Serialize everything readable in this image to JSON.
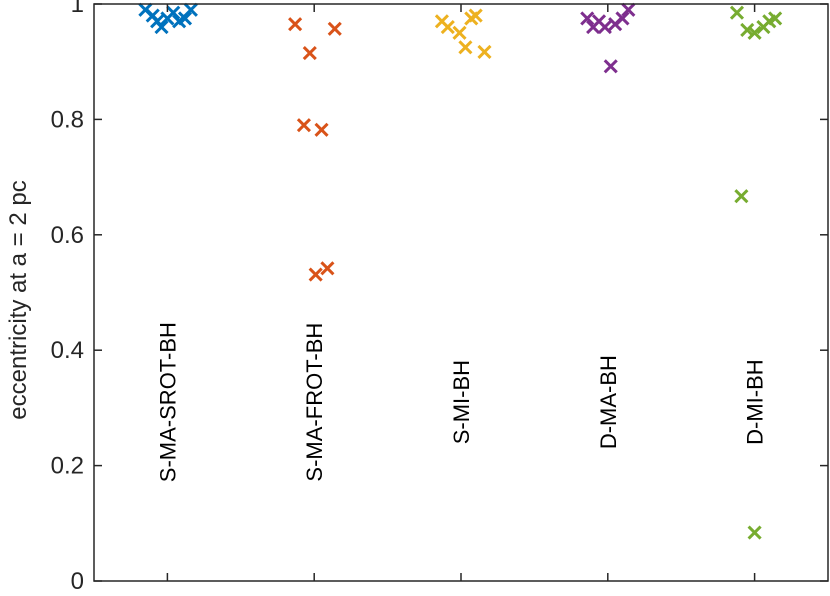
{
  "chart_data": {
    "type": "scatter",
    "title": "",
    "xlabel": "",
    "ylabel": "eccentricity at a = 2 pc",
    "ylim": [
      0,
      1
    ],
    "yticks": [
      {
        "value": 0,
        "label": "0"
      },
      {
        "value": 0.2,
        "label": "0.2"
      },
      {
        "value": 0.4,
        "label": "0.4"
      },
      {
        "value": 0.6,
        "label": "0.6"
      },
      {
        "value": 0.8,
        "label": "0.8"
      },
      {
        "value": 1,
        "label": "1"
      }
    ],
    "xlim": [
      0.5,
      5.5
    ],
    "grid": false,
    "marker": "x",
    "label_value": 0.31,
    "series": [
      {
        "name": "S-MA-SROT-BH",
        "color": "#0072BD",
        "center": 1,
        "points": [
          {
            "x": 0.85,
            "y": 0.99
          },
          {
            "x": 0.9,
            "y": 0.98
          },
          {
            "x": 0.93,
            "y": 0.97
          },
          {
            "x": 0.96,
            "y": 0.96
          },
          {
            "x": 1.0,
            "y": 0.975
          },
          {
            "x": 1.04,
            "y": 0.985
          },
          {
            "x": 1.08,
            "y": 0.97
          },
          {
            "x": 1.12,
            "y": 0.975
          },
          {
            "x": 1.16,
            "y": 0.99
          }
        ]
      },
      {
        "name": "S-MA-FROT-BH",
        "color": "#D95319",
        "center": 2,
        "points": [
          {
            "x": 1.87,
            "y": 0.965
          },
          {
            "x": 2.14,
            "y": 0.957
          },
          {
            "x": 1.97,
            "y": 0.915
          },
          {
            "x": 1.93,
            "y": 0.79
          },
          {
            "x": 2.05,
            "y": 0.782
          },
          {
            "x": 2.01,
            "y": 0.531
          },
          {
            "x": 2.09,
            "y": 0.542
          }
        ]
      },
      {
        "name": "S-MI-BH",
        "color": "#EDB120",
        "center": 3,
        "points": [
          {
            "x": 2.87,
            "y": 0.97
          },
          {
            "x": 2.91,
            "y": 0.96
          },
          {
            "x": 2.99,
            "y": 0.95
          },
          {
            "x": 3.03,
            "y": 0.925
          },
          {
            "x": 3.07,
            "y": 0.975
          },
          {
            "x": 3.1,
            "y": 0.98
          },
          {
            "x": 3.16,
            "y": 0.917
          }
        ]
      },
      {
        "name": "D-MA-BH",
        "color": "#7E2F8E",
        "center": 4,
        "points": [
          {
            "x": 3.86,
            "y": 0.975
          },
          {
            "x": 3.9,
            "y": 0.96
          },
          {
            "x": 3.94,
            "y": 0.97
          },
          {
            "x": 3.98,
            "y": 0.96
          },
          {
            "x": 4.05,
            "y": 0.965
          },
          {
            "x": 4.1,
            "y": 0.975
          },
          {
            "x": 4.14,
            "y": 0.99
          },
          {
            "x": 4.02,
            "y": 0.892
          }
        ]
      },
      {
        "name": "D-MI-BH",
        "color": "#77AC30",
        "center": 5,
        "points": [
          {
            "x": 4.88,
            "y": 0.985
          },
          {
            "x": 4.95,
            "y": 0.955
          },
          {
            "x": 5.0,
            "y": 0.95
          },
          {
            "x": 5.06,
            "y": 0.96
          },
          {
            "x": 5.1,
            "y": 0.97
          },
          {
            "x": 5.14,
            "y": 0.975
          },
          {
            "x": 4.91,
            "y": 0.667
          },
          {
            "x": 5.0,
            "y": 0.084
          }
        ]
      }
    ]
  }
}
